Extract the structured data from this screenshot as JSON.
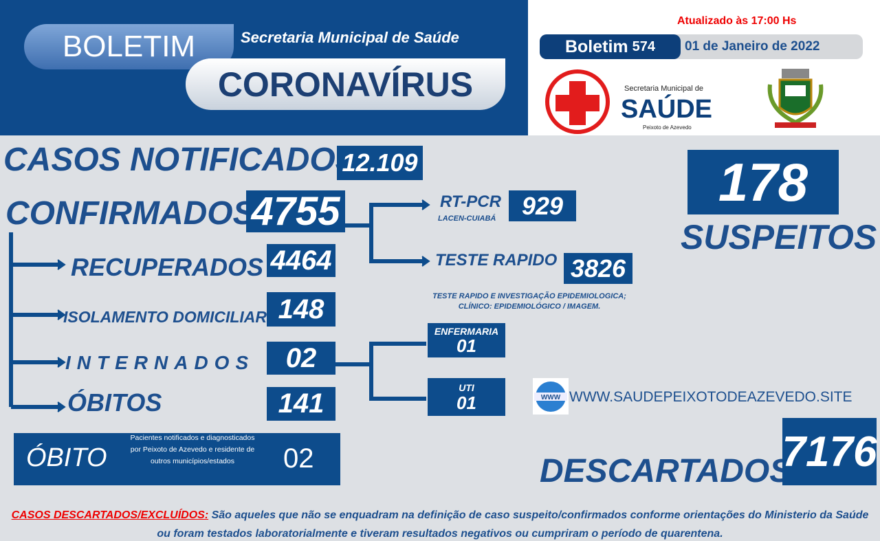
{
  "header": {
    "tag": "BOLETIM",
    "subtitle": "Secretaria Municipal de Saúde",
    "title": "CORONAVÍRUS",
    "updated": "Atualizado às 17:00 Hs",
    "bulletin_label": "Boletim",
    "bulletin_number": "574",
    "date": "01 de Janeiro de 2022",
    "logo_small": "Secretaria Municipal de",
    "logo_big": "SAÚDE",
    "logo_city": "Peixoto de Azevedo"
  },
  "stats": {
    "notified": {
      "label": "CASOS NOTIFICADOS",
      "value": "12.109"
    },
    "confirmed": {
      "label": "CONFIRMADOS",
      "value": "4755"
    },
    "rtpcr": {
      "label": "RT-PCR",
      "sublabel": "LACEN-CUIABÁ",
      "value": "929"
    },
    "rapid": {
      "label": "TESTE RAPIDO",
      "value": "3826",
      "note": "TESTE RAPIDO  E INVESTIGAÇÃO EPIDEMIOLOGICA; CLÍNICO: EPIDEMIOLÓGICO / IMAGEM."
    },
    "suspects": {
      "label": "SUSPEITOS",
      "value": "178"
    },
    "recovered": {
      "label": "RECUPERADOS",
      "value": "4464"
    },
    "home_isolation": {
      "label": "ISOLAMENTO DOMICILIAR",
      "value": "148"
    },
    "hospitalized": {
      "label": "INTERNADOS",
      "value": "02"
    },
    "ward": {
      "label": "ENFERMARIA",
      "value": "01"
    },
    "icu": {
      "label": "UTI",
      "value": "01"
    },
    "deaths": {
      "label": "ÓBITOS",
      "value": "141"
    },
    "other_deaths": {
      "label": "ÓBITO",
      "note": "Pacientes notificados e diagnosticados por Peixoto de Azevedo e residente de outros municípios/estados",
      "value": "02"
    },
    "discarded": {
      "label": "DESCARTADOS",
      "value": "7176"
    }
  },
  "website": "WWW.SAUDEPEIXOTODEAZEVEDO.SITE",
  "footer": {
    "term": "CASOS DESCARTADOS/EXCLUÍDOS:",
    "definition": "São aqueles que não se enquadram na definição de caso suspeito/confirmados conforme orientações do Ministerio da Saúde ou foram testados laboratorialmente e tiveram resultados negativos ou cumpriram o período de quarentena."
  }
}
